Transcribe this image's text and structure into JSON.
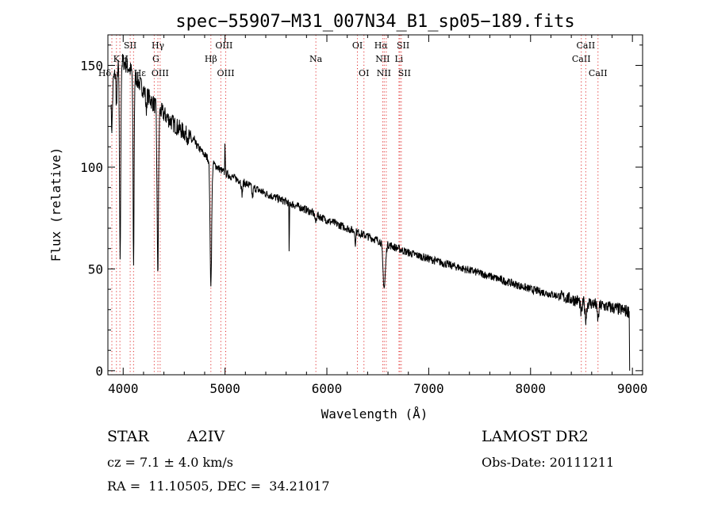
{
  "chart_data": {
    "type": "line",
    "title": "spec−55907−M31_007N34_B1_sp05−189.fits",
    "xlabel": "Wavelength (Å)",
    "ylabel": "Flux (relative)",
    "xlim": [
      3850,
      9100
    ],
    "ylim": [
      -2,
      165
    ],
    "xticks": [
      4000,
      5000,
      6000,
      7000,
      8000,
      9000
    ],
    "yticks": [
      0,
      50,
      100,
      150
    ],
    "continuum_anchors": [
      [
        3880,
        140
      ],
      [
        3950,
        150
      ],
      [
        4000,
        152
      ],
      [
        4100,
        146
      ],
      [
        4200,
        138
      ],
      [
        4300,
        131
      ],
      [
        4400,
        126
      ],
      [
        4500,
        121
      ],
      [
        4600,
        117
      ],
      [
        4700,
        112
      ],
      [
        4800,
        106
      ],
      [
        4900,
        101
      ],
      [
        5000,
        97
      ],
      [
        5200,
        92
      ],
      [
        5400,
        87
      ],
      [
        5600,
        83
      ],
      [
        5800,
        79
      ],
      [
        6000,
        74
      ],
      [
        6200,
        70
      ],
      [
        6400,
        66
      ],
      [
        6600,
        62
      ],
      [
        6800,
        58
      ],
      [
        7000,
        55
      ],
      [
        7200,
        52
      ],
      [
        7500,
        48
      ],
      [
        8000,
        40
      ],
      [
        8500,
        34
      ],
      [
        8800,
        31
      ],
      [
        8970,
        29
      ]
    ],
    "absorption_lines": [
      {
        "wavelength": 3889,
        "depth": 22,
        "width": 6
      },
      {
        "wavelength": 3935,
        "depth": 18,
        "width": 5
      },
      {
        "wavelength": 3970,
        "depth": 95,
        "width": 6
      },
      {
        "wavelength": 4102,
        "depth": 96,
        "width": 5
      },
      {
        "wavelength": 4226,
        "depth": 8,
        "width": 5
      },
      {
        "wavelength": 4340,
        "depth": 80,
        "width": 7
      },
      {
        "wavelength": 4861,
        "depth": 60,
        "width": 8
      },
      {
        "wavelength": 5167,
        "depth": 6,
        "width": 6
      },
      {
        "wavelength": 5270,
        "depth": 5,
        "width": 6
      },
      {
        "wavelength": 5630,
        "depth": 26,
        "width": 2
      },
      {
        "wavelength": 5890,
        "depth": 4,
        "width": 6
      },
      {
        "wavelength": 6280,
        "depth": 8,
        "width": 3
      },
      {
        "wavelength": 6563,
        "depth": 22,
        "width": 12
      },
      {
        "wavelength": 8498,
        "depth": 6,
        "width": 8
      },
      {
        "wavelength": 8542,
        "depth": 8,
        "width": 8
      },
      {
        "wavelength": 8662,
        "depth": 7,
        "width": 8
      }
    ],
    "emission_spikes": [
      {
        "wavelength": 5000,
        "height": 18,
        "width": 2
      }
    ],
    "noise_amplitude": 2,
    "line_markers": [
      {
        "label": "Hδ",
        "wavelength": 3889,
        "row": 2,
        "dx": -9
      },
      {
        "label": "K",
        "wavelength": 3934,
        "row": 1
      },
      {
        "label": "H",
        "wavelength": 3968,
        "row": 1,
        "dx": 6
      },
      {
        "label": "SII",
        "wavelength": 4069,
        "row": 0
      },
      {
        "label": "Hε",
        "wavelength": 4102,
        "row": 2,
        "dx": 8
      },
      {
        "label": "Hγ",
        "wavelength": 4341,
        "row": 0
      },
      {
        "label": "G",
        "wavelength": 4305,
        "row": 1,
        "dx": 2
      },
      {
        "label": "OIII",
        "wavelength": 4363,
        "row": 2
      },
      {
        "label": "OIII",
        "wavelength": 4959,
        "row": 0,
        "dx": 4
      },
      {
        "label": "Hβ",
        "wavelength": 4861,
        "row": 1
      },
      {
        "label": "OIII",
        "wavelength": 5007,
        "row": 2
      },
      {
        "label": "Na",
        "wavelength": 5892,
        "row": 1
      },
      {
        "label": "OI",
        "wavelength": 6300,
        "row": 0
      },
      {
        "label": "OI",
        "wavelength": 6364,
        "row": 2
      },
      {
        "label": "Hα",
        "wavelength": 6563,
        "row": 0,
        "dx": -4
      },
      {
        "label": "NII",
        "wavelength": 6548,
        "row": 1
      },
      {
        "label": "NII",
        "wavelength": 6583,
        "row": 2,
        "dx": -3
      },
      {
        "label": "SII",
        "wavelength": 6717,
        "row": 0,
        "dx": 4
      },
      {
        "label": "Li",
        "wavelength": 6708,
        "row": 1
      },
      {
        "label": "SII",
        "wavelength": 6731,
        "row": 2,
        "dx": 4
      },
      {
        "label": "CaII",
        "wavelength": 8498,
        "row": 1
      },
      {
        "label": "CaII",
        "wavelength": 8542,
        "row": 0
      },
      {
        "label": "CaII",
        "wavelength": 8662,
        "row": 2
      }
    ]
  },
  "info": {
    "class_label": "STAR",
    "subclass": "A2IV",
    "survey": "LAMOST DR2",
    "cz_text": "cz = 7.1 ± 4.0 km/s",
    "obs_date": "Obs-Date: 20111211",
    "coords": "RA =  11.10505, DEC =  34.21017"
  }
}
